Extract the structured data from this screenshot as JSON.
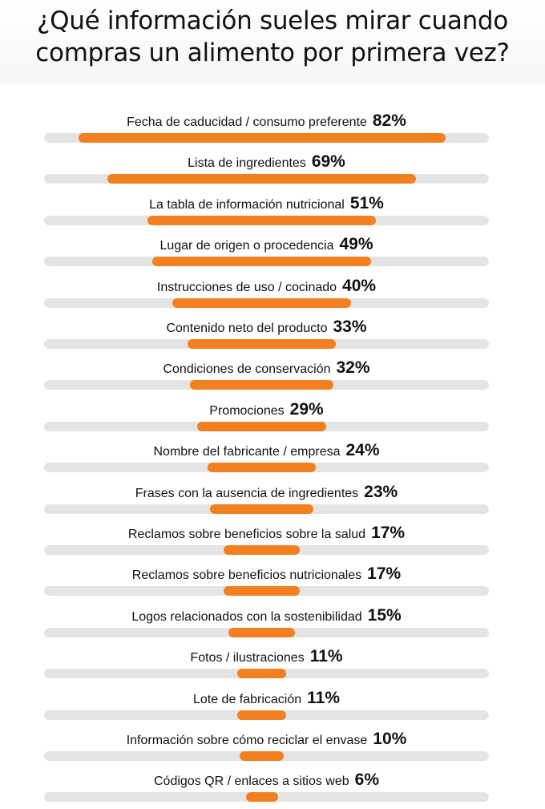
{
  "header": {
    "title_line1": "¿Qué información sueles mirar cuando",
    "title_line2": "compras un alimento por primera vez?"
  },
  "colors": {
    "bar": "#f28021",
    "track": "#e4e4e2",
    "text": "#111111"
  },
  "chart_data": {
    "type": "bar",
    "orientation": "horizontal",
    "title": "¿Qué información sueles mirar cuando compras un alimento por primera vez?",
    "xlim": [
      0,
      100
    ],
    "grid": false,
    "categories": [
      "Fecha de caducidad / consumo preferente",
      "Lista de ingredientes",
      "La tabla de información nutricional",
      "Lugar de origen o procedencia",
      "Instrucciones de uso / cocinado",
      "Contenido neto del producto",
      "Condiciones de conservación",
      "Promociones",
      "Nombre del fabricante / empresa",
      "Frases con la ausencia de ingredientes",
      "Reclamos sobre beneficios sobre la salud",
      "Reclamos sobre beneficios nutricionales",
      "Logos relacionados con la sostenibilidad",
      "Fotos / ilustraciones",
      "Lote de fabricación",
      "Información sobre cómo reciclar el envase",
      "Códigos QR / enlaces a sitios web"
    ],
    "values": [
      82,
      69,
      51,
      49,
      40,
      33,
      32,
      29,
      24,
      23,
      17,
      17,
      15,
      11,
      11,
      10,
      6
    ],
    "value_labels": [
      "82%",
      "69%",
      "51%",
      "49%",
      "40%",
      "33%",
      "32%",
      "29%",
      "24%",
      "23%",
      "17%",
      "17%",
      "15%",
      "11%",
      "11%",
      "10%",
      "6%"
    ]
  }
}
